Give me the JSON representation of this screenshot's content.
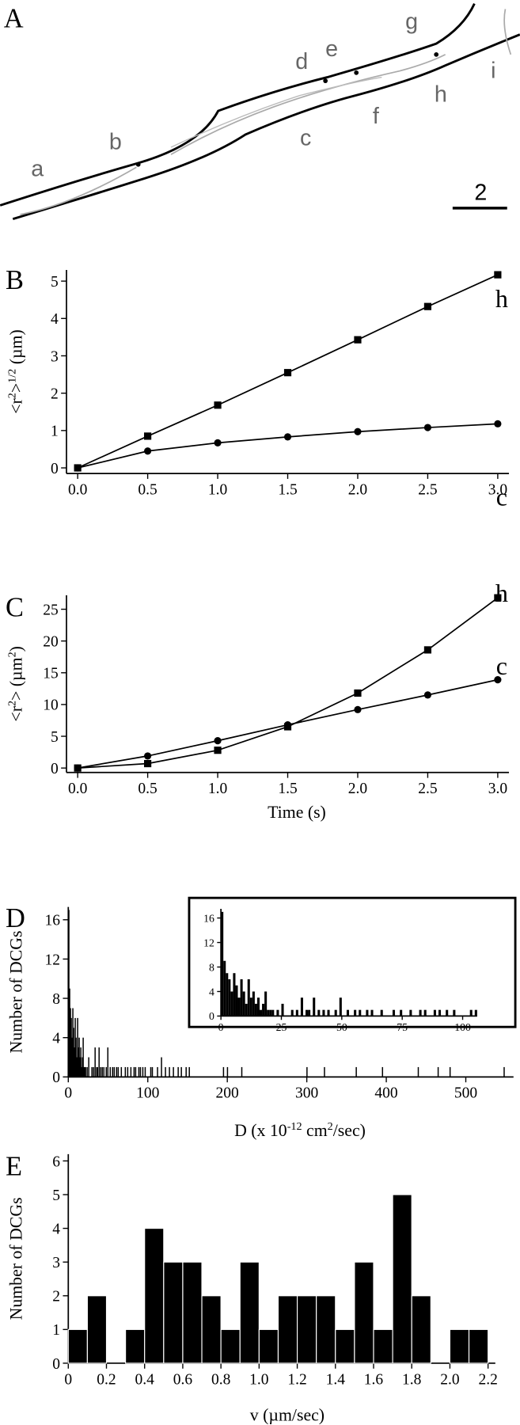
{
  "panel_a": {
    "label": "A",
    "trace_labels": [
      "a",
      "b",
      "c",
      "d",
      "e",
      "f",
      "g",
      "h",
      "i"
    ],
    "scale_bar": "2"
  },
  "chart_data": [
    {
      "type": "line",
      "panel_label": "B",
      "ylabel": [
        "<r",
        "2",
        ">",
        "1/2",
        " (µm)"
      ],
      "x": [
        0,
        0.5,
        1,
        1.5,
        2,
        2.5,
        3
      ],
      "series": [
        {
          "name": "h",
          "color": "#000000",
          "marker": "square",
          "values": [
            0,
            0.85,
            1.68,
            2.55,
            3.43,
            4.32,
            5.17
          ]
        },
        {
          "name": "c",
          "color": "#000000",
          "marker": "circle",
          "values": [
            0,
            0.45,
            0.67,
            0.83,
            0.97,
            1.08,
            1.18
          ]
        }
      ],
      "xlim": [
        -0.08,
        3.08
      ],
      "ylim": [
        -0.15,
        5.3
      ],
      "xticks": [
        {
          "value": 0,
          "label": "0.0"
        },
        0.5,
        {
          "value": 1,
          "label": "1.0"
        },
        1.5,
        {
          "value": 2,
          "label": "2.0"
        },
        2.5,
        {
          "value": 3,
          "label": "3.0"
        }
      ],
      "yticks": [
        0,
        1,
        2,
        3,
        4,
        5
      ]
    },
    {
      "type": "line",
      "panel_label": "C",
      "ylabel": [
        "<r",
        "2",
        "> (µm",
        "2",
        ")"
      ],
      "xlabel": "Time (s)",
      "x": [
        0,
        0.5,
        1,
        1.5,
        2,
        2.5,
        3
      ],
      "series": [
        {
          "name": "h",
          "color": "#000000",
          "marker": "square",
          "values": [
            0,
            0.7,
            2.8,
            6.5,
            11.8,
            18.6,
            26.8
          ]
        },
        {
          "name": "c",
          "color": "#000000",
          "marker": "circle",
          "values": [
            0,
            1.9,
            4.3,
            6.8,
            9.2,
            11.5,
            13.9
          ]
        }
      ],
      "xlim": [
        -0.08,
        3.08
      ],
      "ylim": [
        -0.7,
        27.2
      ],
      "xticks": [
        {
          "value": 0,
          "label": "0.0"
        },
        0.5,
        {
          "value": 1,
          "label": "1.0"
        },
        1.5,
        {
          "value": 2,
          "label": "2.0"
        },
        2.5,
        {
          "value": 3,
          "label": "3.0"
        }
      ],
      "yticks": [
        0,
        5,
        10,
        15,
        20,
        25
      ]
    },
    {
      "type": "bar",
      "panel_label": "D",
      "ylabel": [
        "Number of DCGs"
      ],
      "xlabel": [
        "D (x 10",
        "-12",
        " cm",
        "2",
        "/sec)"
      ],
      "color": "#000000",
      "bar_width": 1,
      "x": [
        0.5,
        1.5,
        2.5,
        3.5,
        4.5,
        5.5,
        6.5,
        7.5,
        8.5,
        9.5,
        10.5,
        11.5,
        12.5,
        13.5,
        14.5,
        15.5,
        16.5,
        17.5,
        18.5,
        19.5,
        20.5,
        21.5,
        23.5,
        25.5,
        29.5,
        31.5,
        33.5,
        35.5,
        36.5,
        38.5,
        40.5,
        42.5,
        44.5,
        47.5,
        49.5,
        52.5,
        55.5,
        57.5,
        60.5,
        62.5,
        66.5,
        71.5,
        74.5,
        78.5,
        82.5,
        84.5,
        88.5,
        90.5,
        93.5,
        96.5,
        103.5,
        105.5,
        112,
        117,
        122,
        127,
        132,
        138,
        142,
        148,
        152,
        195,
        200,
        218,
        300,
        322,
        362,
        395,
        440,
        465,
        480,
        548
      ],
      "values": [
        17,
        9,
        7,
        6,
        4,
        7,
        5,
        3,
        6,
        4,
        2,
        6,
        3,
        4,
        2,
        3,
        1,
        2,
        4,
        1,
        1,
        1,
        1,
        2,
        1,
        1,
        3,
        1,
        1,
        3,
        1,
        1,
        1,
        1,
        3,
        1,
        1,
        1,
        1,
        1,
        1,
        1,
        1,
        1,
        1,
        1,
        1,
        1,
        1,
        1,
        1,
        1,
        1,
        2,
        1,
        1,
        1,
        1,
        1,
        1,
        1,
        1,
        1,
        1,
        1,
        1,
        1,
        1,
        1,
        1,
        1,
        1
      ],
      "xlim": [
        0,
        560
      ],
      "ylim": [
        0,
        17.3
      ],
      "xticks": [
        0,
        100,
        200,
        300,
        400,
        500
      ],
      "yticks": [
        0,
        4,
        8,
        12,
        16
      ],
      "inset": {
        "xlim": [
          0,
          106
        ],
        "ylim": [
          0,
          17.5
        ],
        "xticks": [
          0,
          25,
          50,
          75,
          100
        ],
        "yticks": [
          0,
          4,
          8,
          12,
          16
        ]
      }
    },
    {
      "type": "histogram",
      "panel_label": "E",
      "ylabel": [
        "Number of DCGs"
      ],
      "xlabel": [
        "v (µm/sec)"
      ],
      "color": "#000000",
      "bins": [
        0,
        0.1,
        0.2,
        0.3,
        0.4,
        0.5,
        0.6,
        0.7,
        0.8,
        0.9,
        1.0,
        1.1,
        1.2,
        1.3,
        1.4,
        1.5,
        1.6,
        1.7,
        1.8,
        1.9,
        2.0,
        2.1,
        2.2
      ],
      "values": [
        1,
        2,
        0,
        1,
        4,
        3,
        3,
        2,
        1,
        3,
        1,
        2,
        2,
        2,
        1,
        3,
        1,
        5,
        2,
        0,
        1,
        1
      ],
      "xlim": [
        0,
        2.2
      ],
      "ylim": [
        0,
        6.2
      ],
      "xticks": [
        0,
        0.2,
        0.4,
        0.6,
        0.8,
        {
          "value": 1,
          "label": "1.0"
        },
        1.2,
        1.4,
        1.6,
        1.8,
        {
          "value": 2,
          "label": "2.0"
        },
        2.2
      ],
      "yticks": [
        0,
        1,
        2,
        3,
        4,
        5,
        6
      ]
    }
  ]
}
